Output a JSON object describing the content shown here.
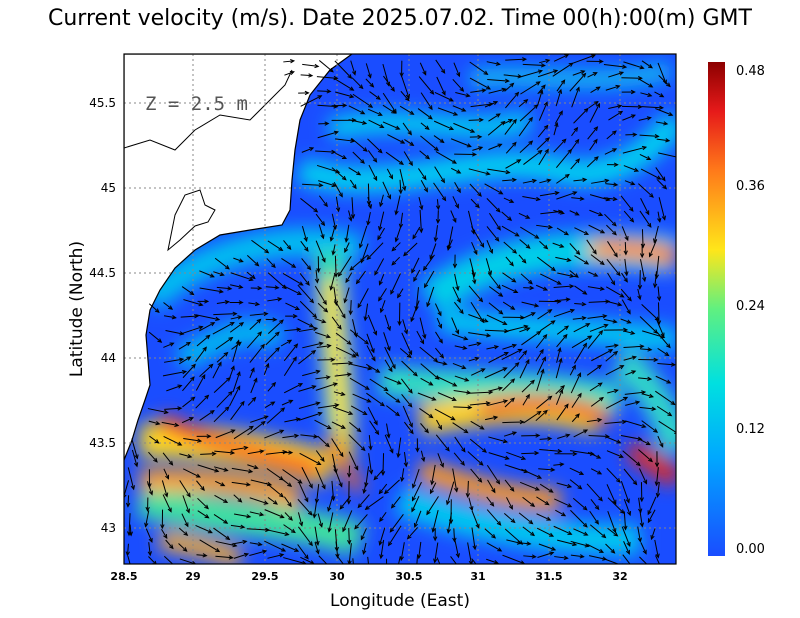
{
  "title": "Current velocity (m/s). Date 2025.07.02. Time 00(h):00(m) GMT",
  "depth_label": "Z = 2.5 m",
  "x_axis": {
    "label": "Longitude (East)",
    "ticks": [
      "28.5",
      "29",
      "29.5",
      "30",
      "30.5",
      "31",
      "31.5",
      "32"
    ]
  },
  "y_axis": {
    "label": "Latitude (North)",
    "ticks": [
      "43",
      "43.5",
      "44",
      "44.5",
      "45",
      "45.5"
    ]
  },
  "colorbar": {
    "ticks": [
      "0.00",
      "0.12",
      "0.24",
      "0.36",
      "0.48"
    ],
    "colors": [
      "#1a4dff",
      "#00c8ff",
      "#33e6b3",
      "#ffe61a",
      "#ff7a1a",
      "#e61a1a",
      "#8c0000"
    ]
  },
  "map_data": {
    "type": "current-velocity-field",
    "lon_range": [
      28.5,
      32.4
    ],
    "lat_range": [
      42.8,
      45.8
    ],
    "velocity_range": [
      0.0,
      0.48
    ],
    "land_color": "#ffffff",
    "coastline_color": "#000000",
    "grid": "dotted"
  }
}
